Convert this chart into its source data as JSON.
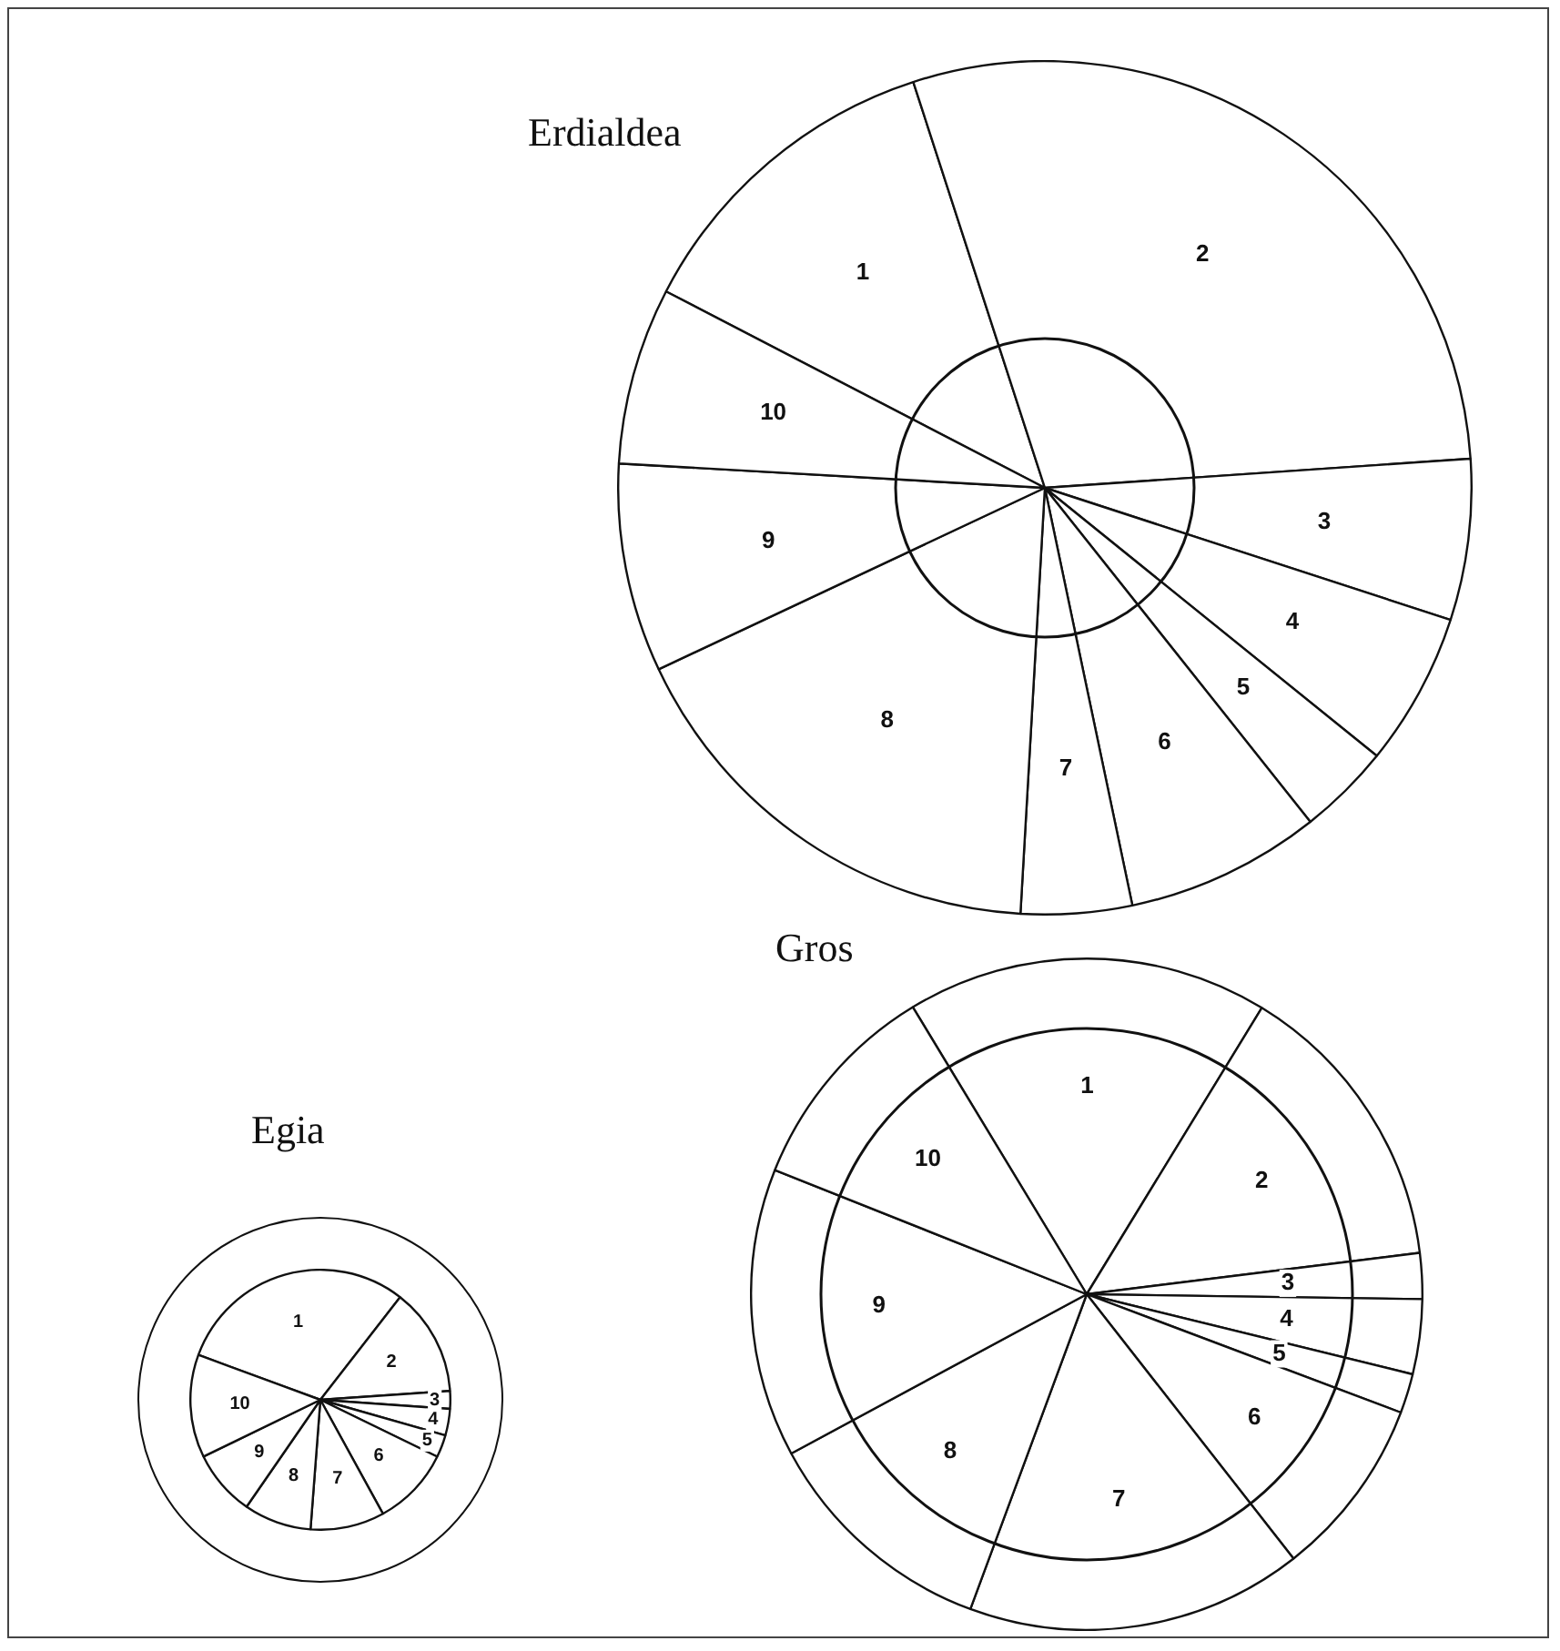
{
  "chart_data": [
    {
      "type": "pie",
      "title": "Erdialdea",
      "categories": [
        "1",
        "2",
        "3",
        "4",
        "5",
        "6",
        "7",
        "8",
        "9",
        "10"
      ],
      "values": [
        12.4,
        28.9,
        6.1,
        5.8,
        3.5,
        7.4,
        4.2,
        17.1,
        7.9,
        6.7
      ],
      "colors": [
        "#ffffff",
        "#ffffff",
        "#ffffff",
        "#ffffff",
        "#ffffff",
        "#ffffff",
        "#ffffff",
        "#ffffff",
        "#ffffff",
        "#ffffff"
      ],
      "legend": false
    },
    {
      "type": "pie",
      "title": "Gros",
      "categories": [
        "1",
        "2",
        "3",
        "4",
        "5",
        "6",
        "7",
        "8",
        "9",
        "10"
      ],
      "values": [
        17.4,
        14.3,
        2.2,
        3.6,
        1.9,
        8.7,
        16.2,
        11.5,
        13.9,
        10.3
      ],
      "colors": [
        "#ffffff",
        "#ffffff",
        "#ffffff",
        "#ffffff",
        "#ffffff",
        "#ffffff",
        "#ffffff",
        "#ffffff",
        "#ffffff",
        "#ffffff"
      ],
      "legend": false
    },
    {
      "type": "pie",
      "title": "Egia",
      "categories": [
        "1",
        "2",
        "3",
        "4",
        "5",
        "6",
        "7",
        "8",
        "9",
        "10"
      ],
      "values": [
        29.9,
        13.4,
        2.2,
        3.3,
        2.8,
        9.8,
        9.2,
        8.4,
        8.2,
        12.8
      ],
      "colors": [
        "#ffffff",
        "#ffffff",
        "#ffffff",
        "#ffffff",
        "#ffffff",
        "#ffffff",
        "#ffffff",
        "#ffffff",
        "#ffffff",
        "#ffffff"
      ],
      "legend": false
    }
  ]
}
